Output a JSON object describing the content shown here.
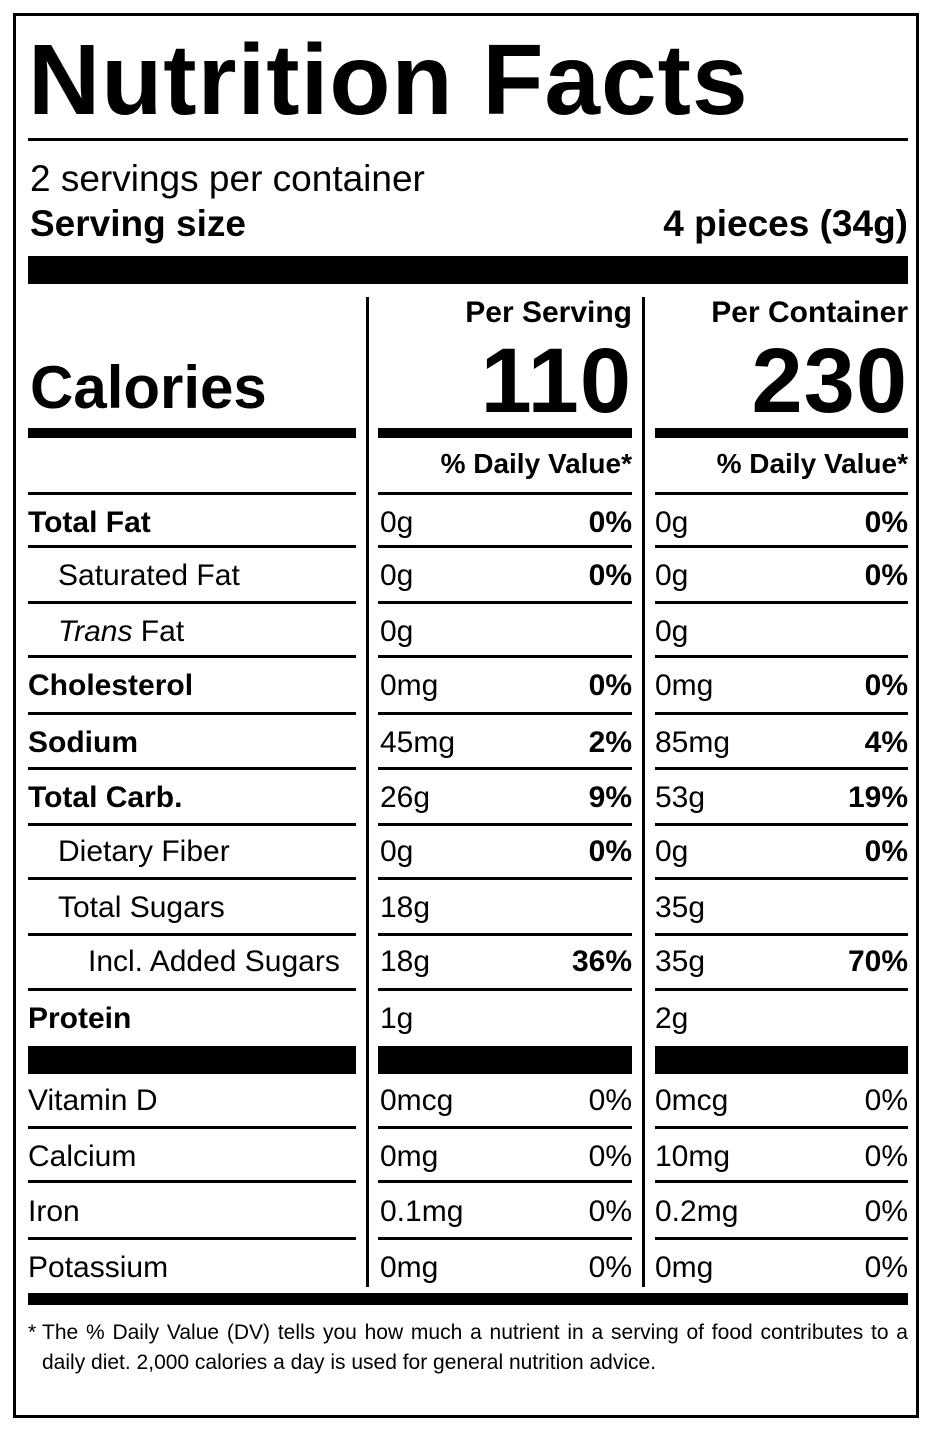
{
  "title": "Nutrition Facts",
  "servings_per_container": "2 servings per container",
  "serving_size_label": "Serving size",
  "serving_size_value": "4 pieces (34g)",
  "calories_label": "Calories",
  "columns": [
    {
      "header": "Per Serving",
      "calories": "110",
      "dv_header": "% Daily Value*"
    },
    {
      "header": "Per Container",
      "calories": "230",
      "dv_header": "% Daily Value*"
    }
  ],
  "nutrients": [
    {
      "label": "Total Fat",
      "style": "bold",
      "serving": {
        "amount": "0g",
        "dv": "0%"
      },
      "container": {
        "amount": "0g",
        "dv": "0%"
      }
    },
    {
      "label": "Saturated Fat",
      "style": "indent1",
      "serving": {
        "amount": "0g",
        "dv": "0%"
      },
      "container": {
        "amount": "0g",
        "dv": "0%"
      }
    },
    {
      "label_italic": "Trans",
      "label": " Fat",
      "style": "indent1",
      "serving": {
        "amount": "0g",
        "dv": ""
      },
      "container": {
        "amount": "0g",
        "dv": ""
      }
    },
    {
      "label": "Cholesterol",
      "style": "bold",
      "serving": {
        "amount": "0mg",
        "dv": "0%"
      },
      "container": {
        "amount": "0mg",
        "dv": "0%"
      }
    },
    {
      "label": "Sodium",
      "style": "bold",
      "serving": {
        "amount": "45mg",
        "dv": "2%"
      },
      "container": {
        "amount": "85mg",
        "dv": "4%"
      }
    },
    {
      "label": "Total Carb.",
      "style": "bold",
      "serving": {
        "amount": "26g",
        "dv": "9%"
      },
      "container": {
        "amount": "53g",
        "dv": "19%"
      }
    },
    {
      "label": "Dietary Fiber",
      "style": "indent1",
      "serving": {
        "amount": "0g",
        "dv": "0%"
      },
      "container": {
        "amount": "0g",
        "dv": "0%"
      }
    },
    {
      "label": "Total Sugars",
      "style": "indent1",
      "serving": {
        "amount": "18g",
        "dv": ""
      },
      "container": {
        "amount": "35g",
        "dv": ""
      }
    },
    {
      "label": "Incl. Added Sugars",
      "style": "indent2",
      "serving": {
        "amount": "18g",
        "dv": "36%"
      },
      "container": {
        "amount": "35g",
        "dv": "70%"
      }
    },
    {
      "label": "Protein",
      "style": "bold",
      "serving": {
        "amount": "1g",
        "dv": ""
      },
      "container": {
        "amount": "2g",
        "dv": ""
      }
    }
  ],
  "vitamins": [
    {
      "label": "Vitamin D",
      "serving": {
        "amount": "0mcg",
        "dv": "0%"
      },
      "container": {
        "amount": "0mcg",
        "dv": "0%"
      }
    },
    {
      "label": "Calcium",
      "serving": {
        "amount": "0mg",
        "dv": "0%"
      },
      "container": {
        "amount": "10mg",
        "dv": "0%"
      }
    },
    {
      "label": "Iron",
      "serving": {
        "amount": "0.1mg",
        "dv": "0%"
      },
      "container": {
        "amount": "0.2mg",
        "dv": "0%"
      }
    },
    {
      "label": "Potassium",
      "serving": {
        "amount": "0mg",
        "dv": "0%"
      },
      "container": {
        "amount": "0mg",
        "dv": "0%"
      }
    }
  ],
  "footnote_star": "*",
  "footnote": "The % Daily Value (DV) tells you how much a nutrient in a serving of food contributes to a daily diet. 2,000 calories a day is used for general nutrition advice."
}
